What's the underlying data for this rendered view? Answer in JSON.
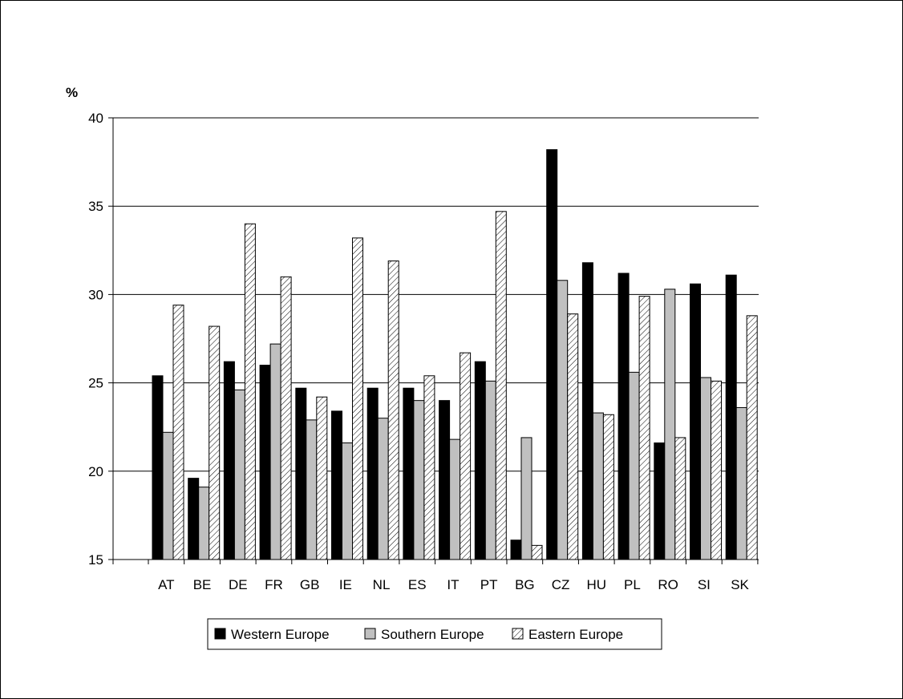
{
  "chart_data": {
    "type": "bar",
    "y_unit": "%",
    "ylim": [
      15,
      40
    ],
    "yticks": [
      15,
      20,
      25,
      30,
      35,
      40
    ],
    "grid": true,
    "legend_position": "bottom",
    "categories": [
      "AT",
      "BE",
      "DE",
      "FR",
      "GB",
      "IE",
      "NL",
      "ES",
      "IT",
      "PT",
      "BG",
      "CZ",
      "HU",
      "PL",
      "RO",
      "SI",
      "SK"
    ],
    "series": [
      {
        "name": "Western Europe",
        "color": "#000000",
        "pattern": "solid",
        "values": [
          25.4,
          19.6,
          26.2,
          26.0,
          24.7,
          23.4,
          24.7,
          24.7,
          24.0,
          26.2,
          16.1,
          38.2,
          31.8,
          31.2,
          21.6,
          30.6,
          31.1
        ]
      },
      {
        "name": "Southern Europe",
        "color": "#c0c0c0",
        "pattern": "solid",
        "values": [
          22.2,
          19.1,
          24.6,
          27.2,
          22.9,
          21.6,
          23.0,
          24.0,
          21.8,
          25.1,
          21.9,
          30.8,
          23.3,
          25.6,
          30.3,
          25.3,
          23.6
        ]
      },
      {
        "name": "Eastern Europe",
        "color": "#ffffff",
        "pattern": "diagonal-hatch",
        "values": [
          29.4,
          28.2,
          34.0,
          31.0,
          24.2,
          33.2,
          31.9,
          25.4,
          26.7,
          34.7,
          15.8,
          28.9,
          23.2,
          29.9,
          21.9,
          25.1,
          28.8
        ]
      }
    ]
  }
}
